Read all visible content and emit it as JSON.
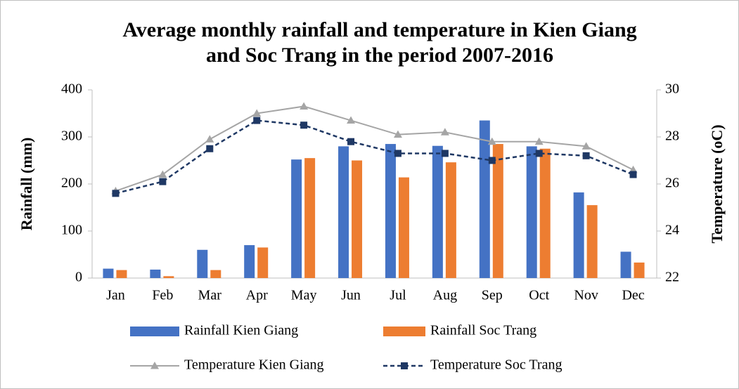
{
  "chart_data": {
    "type": "bar-line",
    "title": [
      "Average monthly rainfall and temperature in Kien Giang",
      "and Soc Trang in the period 2007-2016"
    ],
    "y_label": "Rainfall (mm)",
    "y2_label": "Temperature (oC)",
    "categories": [
      "Jan",
      "Feb",
      "Mar",
      "Apr",
      "May",
      "Jun",
      "Jul",
      "Aug",
      "Sep",
      "Oct",
      "Nov",
      "Dec"
    ],
    "ylim": [
      0,
      400
    ],
    "yticks": [
      0,
      100,
      200,
      300,
      400
    ],
    "y2lim": [
      22,
      30
    ],
    "y2ticks": [
      22,
      24,
      26,
      28,
      30
    ],
    "series": [
      {
        "name": "Rainfall Kien Giang",
        "kind": "bar",
        "color": "#4472c4",
        "values": [
          20,
          18,
          60,
          70,
          252,
          280,
          285,
          281,
          335,
          280,
          182,
          56
        ]
      },
      {
        "name": "Rainfall Soc Trang",
        "kind": "bar",
        "color": "#ed7d31",
        "values": [
          17,
          4,
          17,
          65,
          255,
          250,
          214,
          246,
          285,
          275,
          155,
          33
        ]
      },
      {
        "name": "Temperature Kien Giang",
        "kind": "line",
        "axis": "y2",
        "marker": "triangle",
        "color": "#a5a5a5",
        "values": [
          25.7,
          26.4,
          27.9,
          29.0,
          29.3,
          28.7,
          28.1,
          28.2,
          27.8,
          27.8,
          27.6,
          26.6
        ]
      },
      {
        "name": "Temperature Soc Trang",
        "kind": "line",
        "axis": "y2",
        "marker": "square",
        "dashed": true,
        "color": "#1f3864",
        "values": [
          25.6,
          26.1,
          27.5,
          28.7,
          28.5,
          27.8,
          27.3,
          27.3,
          27.0,
          27.3,
          27.2,
          26.4
        ]
      }
    ]
  }
}
